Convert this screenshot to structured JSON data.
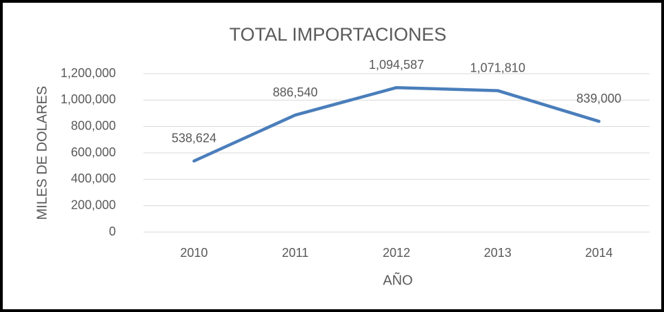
{
  "chart_data": {
    "type": "line",
    "title": "TOTAL IMPORTACIONES",
    "x_label": "AÑO",
    "y_label": "MILES DE DOLARES",
    "categories": [
      "2010",
      "2011",
      "2012",
      "2013",
      "2014"
    ],
    "series": [
      {
        "name": "TOTAL IMPORTACIONES",
        "color": "#4a7ebb",
        "values": [
          538624,
          886540,
          1094587,
          1071810,
          839000
        ],
        "value_labels": [
          "538,624",
          "886,540",
          "1,094,587",
          "1,071,810",
          "839,000"
        ]
      }
    ],
    "ylim": [
      0,
      1200000
    ],
    "yticks": [
      0,
      {
        "value": 200000,
        "label": "200,000"
      },
      {
        "value": 400000,
        "label": "400,000"
      },
      {
        "value": 600000,
        "label": "600,000"
      },
      {
        "value": 800000,
        "label": "800,000"
      },
      {
        "value": 1000000,
        "label": "1,000,000"
      },
      {
        "value": 1200000,
        "label": "1,200,000"
      }
    ],
    "grid": true
  }
}
